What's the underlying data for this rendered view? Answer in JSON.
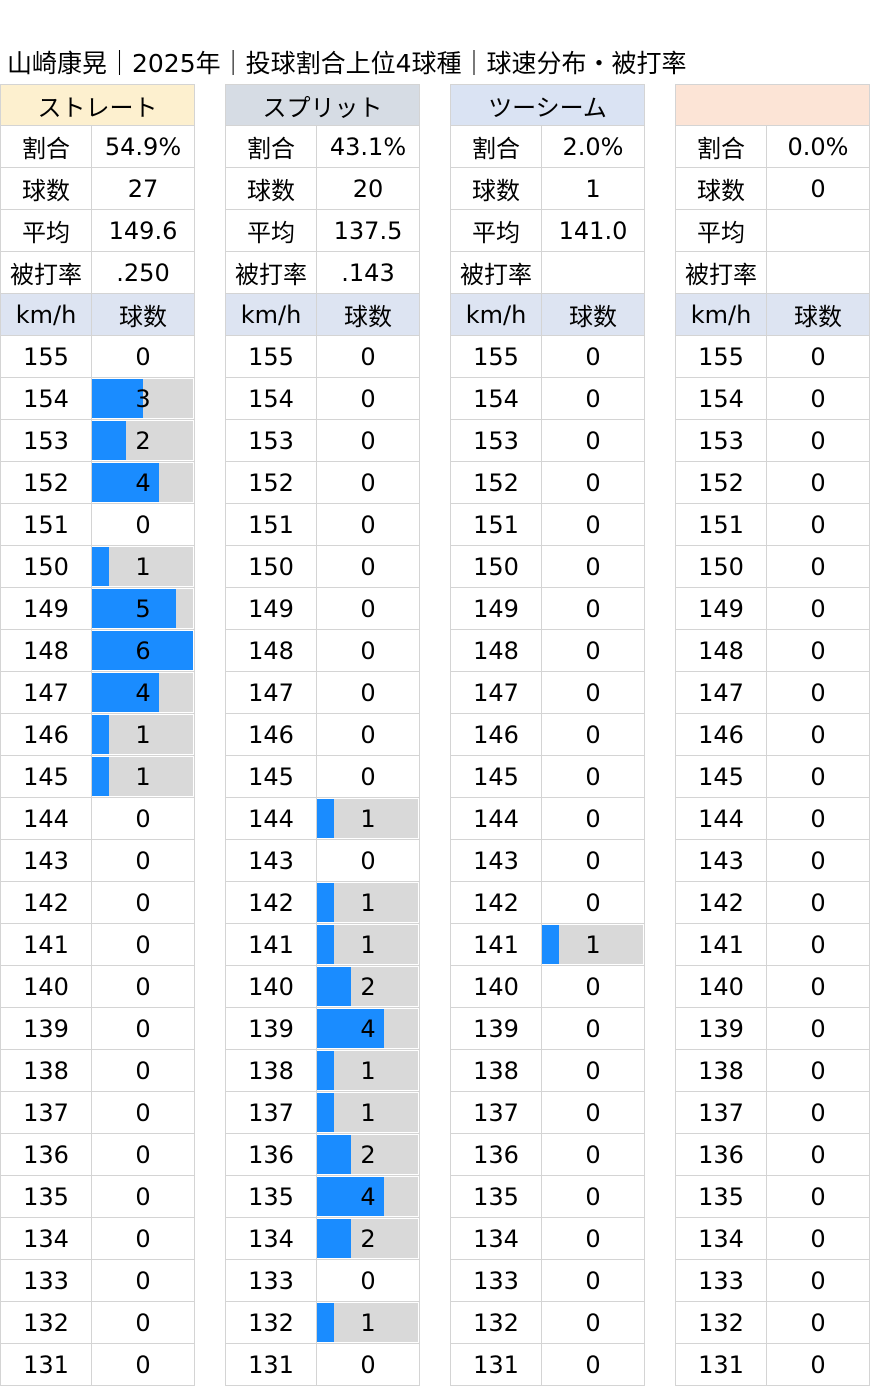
{
  "title": "山崎康晃｜2025年｜投球割合上位4球種｜球速分布・被打率",
  "labels": {
    "ratio": "割合",
    "count": "球数",
    "avg": "平均",
    "baa": "被打率",
    "speed_col": "km/h",
    "count_col": "球数"
  },
  "chart_data": {
    "type": "table",
    "speeds": [
      155,
      154,
      153,
      152,
      151,
      150,
      149,
      148,
      147,
      146,
      145,
      144,
      143,
      142,
      141,
      140,
      139,
      138,
      137,
      136,
      135,
      134,
      133,
      132,
      131
    ],
    "bar_max": 6,
    "pitches": [
      {
        "name": "ストレート",
        "color": "#fdf0cf",
        "ratio": "54.9%",
        "count": "27",
        "avg": "149.6",
        "baa": ".250",
        "counts": [
          0,
          3,
          2,
          4,
          0,
          1,
          5,
          6,
          4,
          1,
          1,
          0,
          0,
          0,
          0,
          0,
          0,
          0,
          0,
          0,
          0,
          0,
          0,
          0,
          0
        ]
      },
      {
        "name": "スプリット",
        "color": "#d6dce4",
        "ratio": "43.1%",
        "count": "20",
        "avg": "137.5",
        "baa": ".143",
        "counts": [
          0,
          0,
          0,
          0,
          0,
          0,
          0,
          0,
          0,
          0,
          0,
          1,
          0,
          1,
          1,
          2,
          4,
          1,
          1,
          2,
          4,
          2,
          0,
          1,
          0
        ]
      },
      {
        "name": "ツーシーム",
        "color": "#dae3f3",
        "ratio": "2.0%",
        "count": "1",
        "avg": "141.0",
        "baa": "",
        "counts": [
          0,
          0,
          0,
          0,
          0,
          0,
          0,
          0,
          0,
          0,
          0,
          0,
          0,
          0,
          1,
          0,
          0,
          0,
          0,
          0,
          0,
          0,
          0,
          0,
          0
        ]
      },
      {
        "name": "",
        "color": "#fce4d6",
        "ratio": "0.0%",
        "count": "0",
        "avg": "",
        "baa": "",
        "counts": [
          0,
          0,
          0,
          0,
          0,
          0,
          0,
          0,
          0,
          0,
          0,
          0,
          0,
          0,
          0,
          0,
          0,
          0,
          0,
          0,
          0,
          0,
          0,
          0,
          0
        ]
      }
    ]
  }
}
